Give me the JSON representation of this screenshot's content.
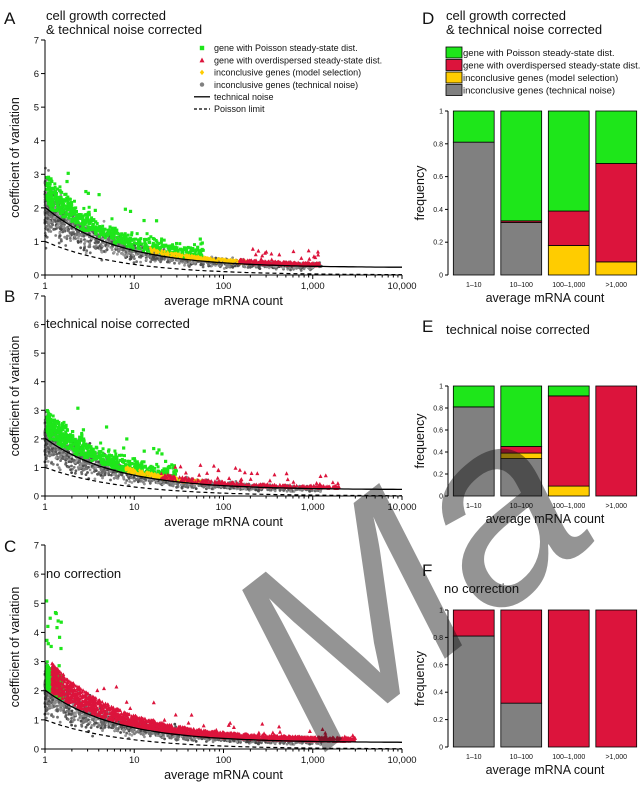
{
  "colors": {
    "poisson": "#1ee61a",
    "overdispersed": "#dc143c",
    "model_selection": "#ffcc00",
    "tech_noise_gene": "#808080",
    "tech_line": "#000000",
    "watermark": "#9a9a9a"
  },
  "watermark": {
    "text": "Ma"
  },
  "chart_data": [
    {
      "id": "A",
      "type": "scatter",
      "letter": "A",
      "title_lines": [
        "cell growth corrected",
        "& technical noise corrected"
      ],
      "xlabel": "average mRNA count",
      "ylabel": "coefficient of variation",
      "xscale": "log",
      "xlim": [
        1,
        10000
      ],
      "ylim": [
        0,
        7
      ],
      "xticks": [
        "1",
        "10",
        "100",
        "1,000",
        "10,000"
      ],
      "yticks": [
        "0",
        "1",
        "2",
        "3",
        "4",
        "5",
        "6",
        "7"
      ],
      "legend": [
        {
          "label": "gene with Poisson steady-state dist.",
          "kind": "square",
          "color": "#1ee61a"
        },
        {
          "label": "gene with overdispersed steady-state dist.",
          "kind": "triangle",
          "color": "#dc143c"
        },
        {
          "label": "inconclusive genes (model selection)",
          "kind": "diamond",
          "color": "#ffcc00"
        },
        {
          "label": "inconclusive genes (technical noise)",
          "kind": "circle",
          "color": "#808080"
        },
        {
          "label": "technical noise",
          "kind": "solid"
        },
        {
          "label": "Poisson limit",
          "kind": "dashed"
        }
      ],
      "clouds": {
        "gray_upper": 1.3,
        "green_upper": [
          1.0,
          1.3
        ],
        "green_xmax": 60,
        "yellow_range": [
          15,
          200
        ],
        "red_range": [
          150,
          1200
        ],
        "red_outliers": 18
      }
    },
    {
      "id": "B",
      "type": "scatter",
      "letter": "B",
      "title_lines": [
        "technical noise corrected"
      ],
      "xlabel": "average mRNA count",
      "ylabel": "coefficient of variation",
      "xscale": "log",
      "xlim": [
        1,
        10000
      ],
      "ylim": [
        0,
        7
      ],
      "xticks": [
        "1",
        "10",
        "100",
        "1,000",
        "10,000"
      ],
      "yticks": [
        "0",
        "1",
        "2",
        "3",
        "4",
        "5",
        "6",
        "7"
      ],
      "clouds": {
        "gray_upper": 1.25,
        "green_upper": [
          1.0,
          1.35
        ],
        "green_xmax": 30,
        "yellow_range": [
          8,
          60
        ],
        "red_range": [
          20,
          2000
        ],
        "red_outliers": 30
      }
    },
    {
      "id": "C",
      "type": "scatter",
      "letter": "C",
      "title_lines": [
        "no correction"
      ],
      "xlabel": "average mRNA count",
      "ylabel": "coefficient of variation",
      "xscale": "log",
      "xlim": [
        1,
        10000
      ],
      "ylim": [
        0,
        7
      ],
      "xticks": [
        "1",
        "10",
        "100",
        "1,000",
        "10,000"
      ],
      "yticks": [
        "0",
        "1",
        "2",
        "3",
        "4",
        "5",
        "6",
        "7"
      ],
      "clouds": {
        "gray_upper": 1.3,
        "green_upper": [
          1.0,
          1.0
        ],
        "green_xmax": 1.6,
        "yellow_range": [
          1,
          1
        ],
        "red_range": [
          1.2,
          3000
        ],
        "red_outliers": 35
      }
    },
    {
      "id": "D",
      "type": "bar",
      "stacked": true,
      "letter": "D",
      "title_lines": [
        "cell growth corrected",
        "& technical noise corrected"
      ],
      "xlabel": "average mRNA count",
      "ylabel": "frequency",
      "categories": [
        "1–10",
        "10–100",
        "100–1,000",
        ">1,000"
      ],
      "yticks": [
        "0",
        "0.2",
        "0.4",
        "0.6",
        "0.8",
        "1"
      ],
      "ylim": [
        0,
        1
      ],
      "legend": [
        {
          "label": "gene with Poisson steady-state dist.",
          "color": "#1ee61a"
        },
        {
          "label": "gene with overdispersed steady-state dist.",
          "color": "#dc143c"
        },
        {
          "label": "inconclusive genes (model selection)",
          "color": "#ffcc00"
        },
        {
          "label": "inconclusive genes (technical noise)",
          "color": "#808080"
        }
      ],
      "series": [
        {
          "key": "tech",
          "color": "#808080",
          "values": [
            0.81,
            0.32,
            0.0,
            0.0
          ]
        },
        {
          "key": "model",
          "color": "#ffcc00",
          "values": [
            0.0,
            0.0,
            0.18,
            0.08
          ]
        },
        {
          "key": "over",
          "color": "#dc143c",
          "values": [
            0.0,
            0.01,
            0.21,
            0.6
          ]
        },
        {
          "key": "poisson",
          "color": "#1ee61a",
          "values": [
            0.19,
            0.67,
            0.61,
            0.32
          ]
        }
      ]
    },
    {
      "id": "E",
      "type": "bar",
      "stacked": true,
      "letter": "E",
      "title_lines": [
        "technical noise corrected"
      ],
      "xlabel": "average mRNA count",
      "ylabel": "frequency",
      "categories": [
        "1–10",
        "10–100",
        "100–1,000",
        ">1,000"
      ],
      "yticks": [
        "0",
        "0.2",
        "0.4",
        "0.6",
        "0.8",
        "1"
      ],
      "ylim": [
        0,
        1
      ],
      "series": [
        {
          "key": "tech",
          "color": "#808080",
          "values": [
            0.81,
            0.34,
            0.0,
            0.0
          ]
        },
        {
          "key": "model",
          "color": "#ffcc00",
          "values": [
            0.0,
            0.05,
            0.09,
            0.0
          ]
        },
        {
          "key": "over",
          "color": "#dc143c",
          "values": [
            0.0,
            0.06,
            0.82,
            1.0
          ]
        },
        {
          "key": "poisson",
          "color": "#1ee61a",
          "values": [
            0.19,
            0.55,
            0.09,
            0.0
          ]
        }
      ]
    },
    {
      "id": "F",
      "type": "bar",
      "stacked": true,
      "letter": "F",
      "title_lines": [
        "no correction"
      ],
      "xlabel": "average mRNA count",
      "ylabel": "frequency",
      "categories": [
        "1–10",
        "10–100",
        "100–1,000",
        ">1,000"
      ],
      "yticks": [
        "0",
        "0.2",
        "0.4",
        "0.6",
        "0.8",
        "1"
      ],
      "ylim": [
        0,
        1
      ],
      "series": [
        {
          "key": "tech",
          "color": "#808080",
          "values": [
            0.81,
            0.32,
            0.0,
            0.0
          ]
        },
        {
          "key": "model",
          "color": "#ffcc00",
          "values": [
            0.0,
            0.0,
            0.0,
            0.0
          ]
        },
        {
          "key": "over",
          "color": "#dc143c",
          "values": [
            0.19,
            0.68,
            1.0,
            1.0
          ]
        },
        {
          "key": "poisson",
          "color": "#1ee61a",
          "values": [
            0.0,
            0.0,
            0.0,
            0.0
          ]
        }
      ]
    }
  ]
}
